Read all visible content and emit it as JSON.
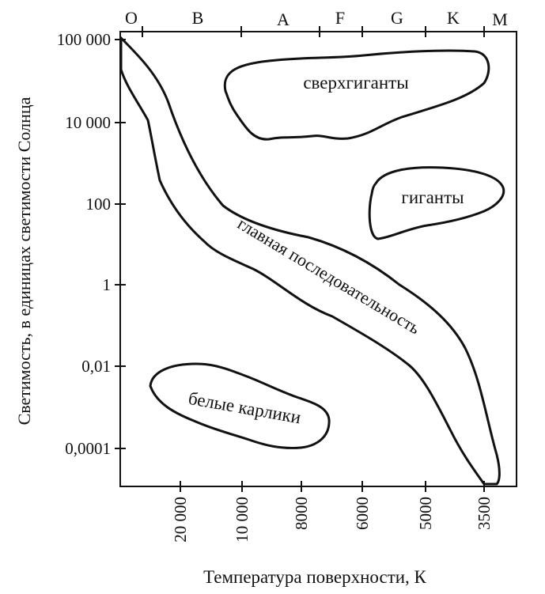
{
  "chart_data": {
    "type": "diagram",
    "title": "",
    "ylabel": "Светимость, в единицах светимости Солнца",
    "xlabel": "Температура поверхности, К",
    "y_ticks": [
      "100 000",
      "10 000",
      "100",
      "1",
      "0,01",
      "0,0001"
    ],
    "x_ticks": [
      "20 000",
      "10 000",
      "8000",
      "6000",
      "5000",
      "3500"
    ],
    "spectral_classes": [
      "O",
      "B",
      "A",
      "F",
      "G",
      "K",
      "M"
    ],
    "regions": {
      "supergiants": "сверхгиганты",
      "giants": "гиганты",
      "main_sequence": "главная последовательность",
      "white_dwarfs": "белые карлики"
    }
  }
}
